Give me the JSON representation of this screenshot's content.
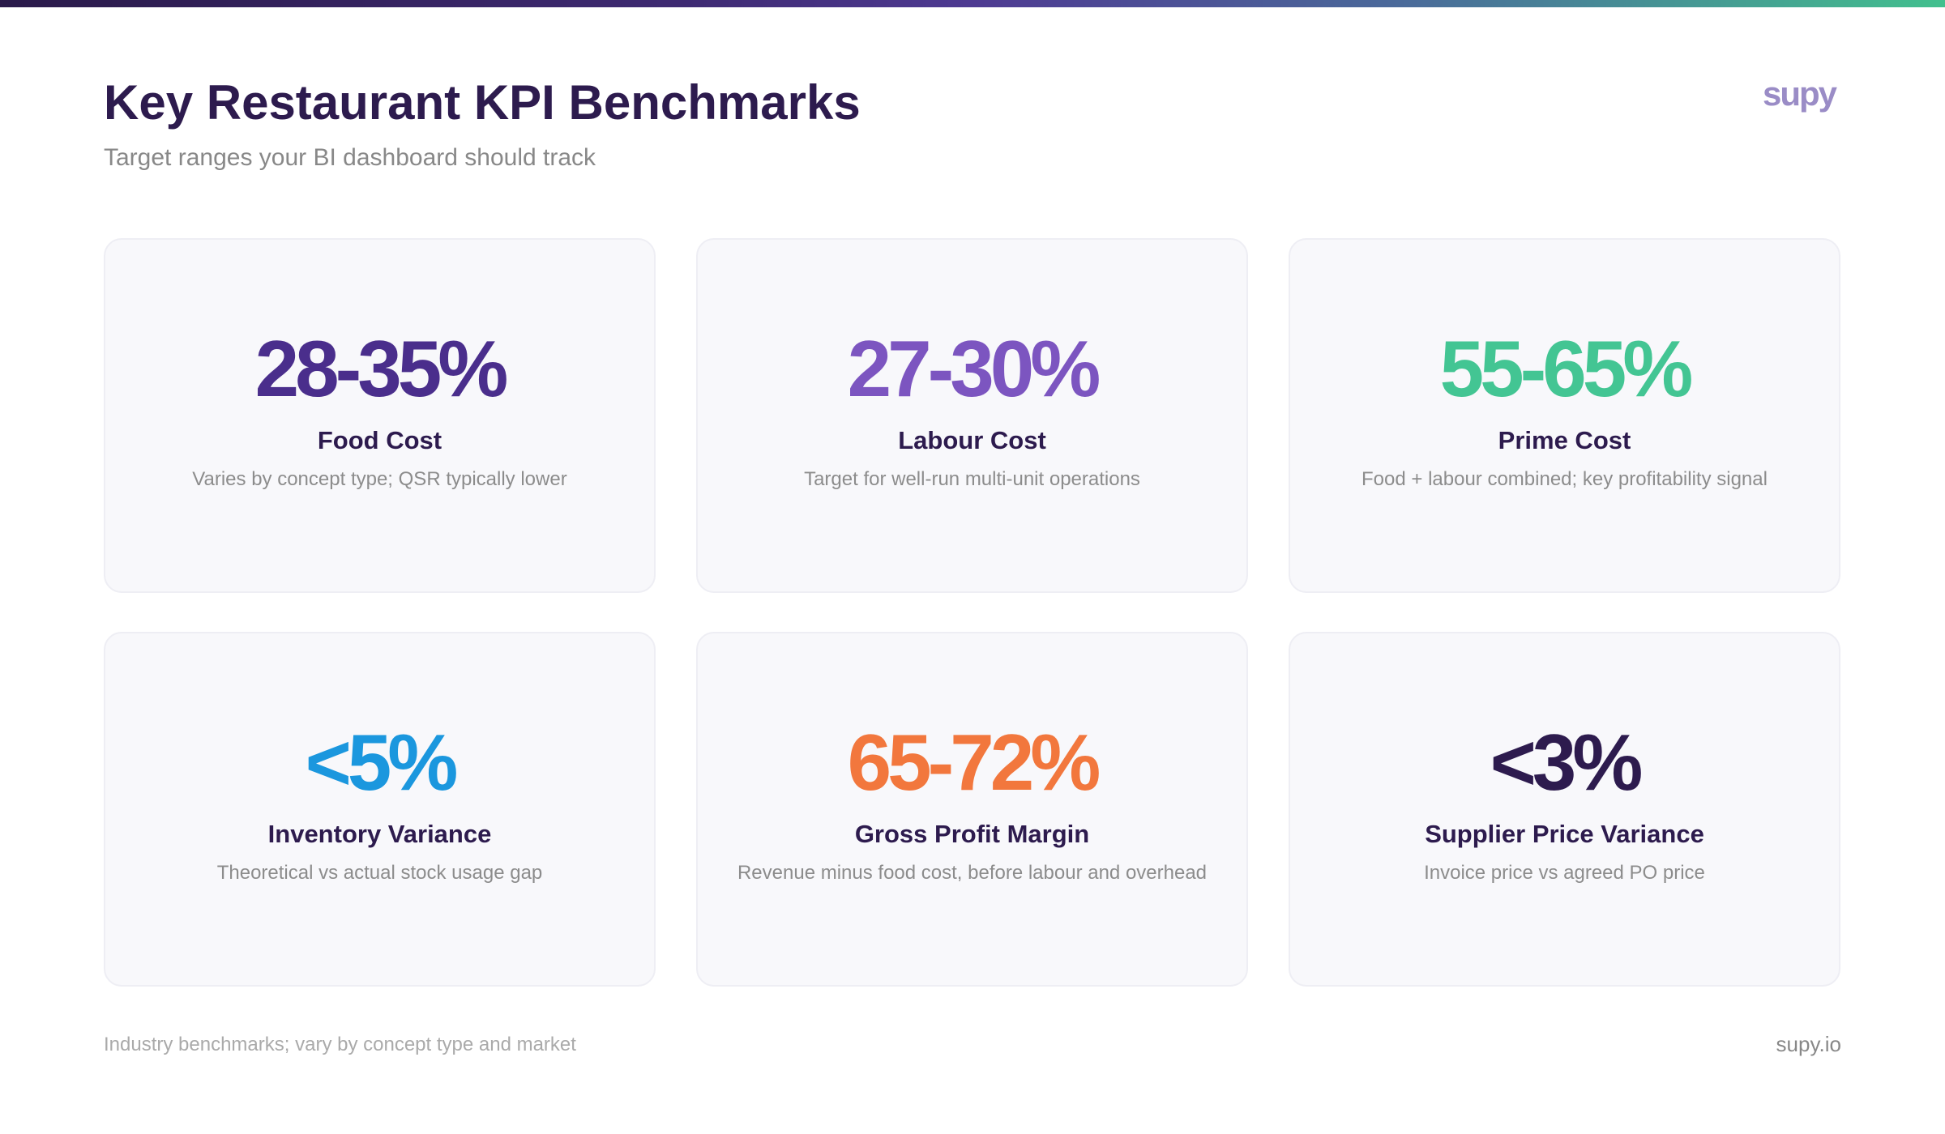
{
  "header": {
    "title": "Key Restaurant KPI Benchmarks",
    "subtitle": "Target ranges your BI dashboard should track",
    "logo": "supy"
  },
  "kpis": [
    {
      "value": "28-35%",
      "label": "Food Cost",
      "description": "Varies by concept type; QSR typically lower",
      "color": "#4a2e8c"
    },
    {
      "value": "27-30%",
      "label": "Labour Cost",
      "description": "Target for well-run multi-unit operations",
      "color": "#7c55c0"
    },
    {
      "value": "55-65%",
      "label": "Prime Cost",
      "description": "Food + labour combined; key profitability signal",
      "color": "#43c593"
    },
    {
      "value": "<5%",
      "label": "Inventory Variance",
      "description": "Theoretical vs actual stock usage gap",
      "color": "#1b97de"
    },
    {
      "value": "65-72%",
      "label": "Gross Profit Margin",
      "description": "Revenue minus food cost, before labour and overhead",
      "color": "#f2773d"
    },
    {
      "value": "<3%",
      "label": "Supplier Price Variance",
      "description": "Invoice price vs agreed PO price",
      "color": "#2d1b4e"
    }
  ],
  "footer": {
    "note": "Industry benchmarks; vary by concept type and market",
    "site": "supy.io"
  },
  "colors": {
    "title": "#2d1b4e",
    "logo": "#9a8cc6"
  }
}
